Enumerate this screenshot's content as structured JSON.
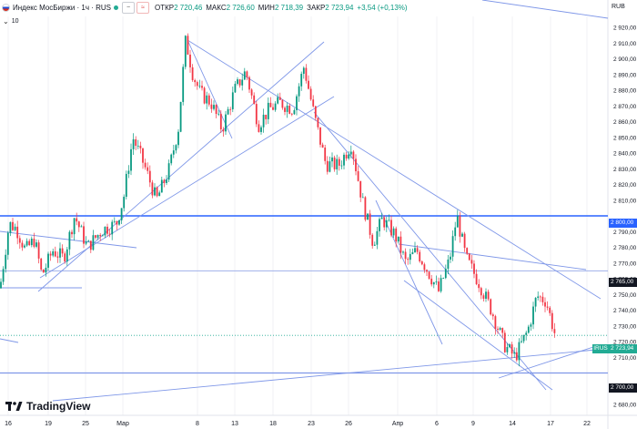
{
  "header": {
    "title": "Индекс МосБиржи · 1ч · RUS",
    "ohlc": [
      {
        "label": "ОТКР",
        "value": "2 720,46"
      },
      {
        "label": "МАКС",
        "value": "2 726,60"
      },
      {
        "label": "МИН",
        "value": "2 718,39"
      },
      {
        "label": "ЗАКР",
        "value": "2 723,94"
      }
    ],
    "change": "+3,54 (+0,13%)",
    "currency": "RUB"
  },
  "indicator": {
    "value": "10"
  },
  "logo": {
    "text": "TradingView"
  },
  "price_axis": {
    "labels": [
      "2 920,00",
      "2 910,00",
      "2 900,00",
      "2 890,00",
      "2 880,00",
      "2 870,00",
      "2 860,00",
      "2 850,00",
      "2 840,00",
      "2 830,00",
      "2 820,00",
      "2 810,00",
      "2 790,00",
      "2 780,00",
      "2 770,00",
      "2 760,00",
      "2 750,00",
      "2 740,00",
      "2 730,00",
      "2 720,00",
      "2 710,00",
      "2 690,00",
      "2 680,00"
    ],
    "tags": {
      "level_2800": "2 800,00",
      "level_2765": "2 765,00",
      "current": "2 723,94",
      "level_2700": "2 700,00",
      "symbol": "IRUS"
    }
  },
  "time_axis": {
    "labels": [
      "16",
      "19",
      "25",
      "Мар",
      "8",
      "13",
      "18",
      "23",
      "26",
      "Апр",
      "6",
      "9",
      "14",
      "17",
      "22"
    ]
  },
  "colors": {
    "up": "#089981",
    "down": "#f23645",
    "line": "#2962ff",
    "trend": "#7f97e8",
    "last": "#22ab94"
  },
  "chart_data": {
    "type": "candlestick",
    "title": "Индекс МосБиржи · 1ч · RUS",
    "unit": "RUB",
    "ylim": [
      2676,
      2928
    ],
    "horizontal_levels": [
      2800,
      2765,
      2700
    ],
    "last_price": 2723.94,
    "path_points": [
      [
        0,
        2754
      ],
      [
        10,
        2795
      ],
      [
        18,
        2792
      ],
      [
        28,
        2778
      ],
      [
        38,
        2785
      ],
      [
        46,
        2762
      ],
      [
        58,
        2778
      ],
      [
        70,
        2773
      ],
      [
        82,
        2800
      ],
      [
        96,
        2780
      ],
      [
        112,
        2791
      ],
      [
        128,
        2795
      ],
      [
        136,
        2812
      ],
      [
        146,
        2850
      ],
      [
        158,
        2833
      ],
      [
        172,
        2810
      ],
      [
        186,
        2830
      ],
      [
        196,
        2856
      ],
      [
        204,
        2912
      ],
      [
        212,
        2890
      ],
      [
        220,
        2878
      ],
      [
        232,
        2872
      ],
      [
        244,
        2855
      ],
      [
        258,
        2880
      ],
      [
        270,
        2892
      ],
      [
        284,
        2858
      ],
      [
        296,
        2868
      ],
      [
        308,
        2872
      ],
      [
        322,
        2868
      ],
      [
        334,
        2895
      ],
      [
        346,
        2862
      ],
      [
        358,
        2833
      ],
      [
        372,
        2832
      ],
      [
        386,
        2846
      ],
      [
        398,
        2810
      ],
      [
        410,
        2783
      ],
      [
        420,
        2798
      ],
      [
        434,
        2788
      ],
      [
        446,
        2770
      ],
      [
        458,
        2778
      ],
      [
        470,
        2765
      ],
      [
        482,
        2752
      ],
      [
        494,
        2772
      ],
      [
        502,
        2800
      ],
      [
        512,
        2773
      ],
      [
        526,
        2758
      ],
      [
        540,
        2740
      ],
      [
        554,
        2718
      ],
      [
        566,
        2710
      ],
      [
        580,
        2727
      ],
      [
        590,
        2749
      ],
      [
        600,
        2746
      ],
      [
        612,
        2720
      ]
    ]
  }
}
